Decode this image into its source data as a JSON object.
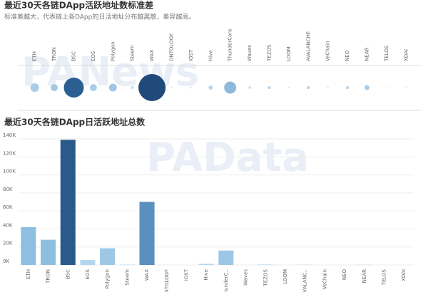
{
  "watermarks": [
    "PANews",
    "PAData"
  ],
  "chart_data": [
    {
      "type": "bubble",
      "title": "最近30天各链DApp活跃地址数标准差",
      "subtitle": "标准差越大，代表链上各DApp的日活地址分布越离散，差异越高。",
      "categories": [
        "ETH",
        "TRON",
        "BSC",
        "EOS",
        "Polygon",
        "Steem",
        "WAX",
        "ONTOLOGY",
        "IOST",
        "Hive",
        "ThunderCore",
        "Waves",
        "TEZOS",
        "LOOM",
        "AVALANCHE",
        "VeChain",
        "NEO",
        "NEAR",
        "TELOS",
        "XDAI"
      ],
      "values": [
        12,
        8,
        65,
        8,
        10,
        1.3,
        120,
        0.5,
        0.5,
        3,
        24,
        1,
        1.5,
        0.3,
        1.5,
        0.5,
        1.5,
        4,
        0.3,
        0.3
      ],
      "colors": [
        "#a9cde8",
        "#a2c6e3",
        "#2c5f91",
        "#a9cde8",
        "#a2c6e3",
        "#c3dbee",
        "#1f4a7a",
        "#d6e6f3",
        "#d6e6f3",
        "#b8d5ec",
        "#8fb9dc",
        "#c3dbee",
        "#b8d5ec",
        "#d6e6f3",
        "#b8d5ec",
        "#d6e6f3",
        "#b8d5ec",
        "#a9cde8",
        "#d6e6f3",
        "#d6e6f3"
      ]
    },
    {
      "type": "bar",
      "title": "最近30天各链DApp日活跃地址总数",
      "categories": [
        "ETH",
        "TRON",
        "BSC",
        "EOS",
        "Polygon",
        "Steem",
        "WAX",
        "ONTOLOGY",
        "IOST",
        "Hive",
        "ThunderC..",
        "Waves",
        "TEZOS",
        "LOOM",
        "AVALANC..",
        "VeChain",
        "NEO",
        "NEAR",
        "TELOS",
        "XDAI"
      ],
      "values": [
        42000,
        28000,
        139000,
        5500,
        18500,
        500,
        70000,
        0,
        0,
        1200,
        16000,
        0,
        500,
        0,
        300,
        0,
        0,
        300,
        0,
        0
      ],
      "colors": [
        "#8fbfe0",
        "#8fbfe0",
        "#2a5a8c",
        "#b3d6ee",
        "#9cc8e6",
        "#c8e1f2",
        "#5b8fbd",
        "#c8e1f2",
        "#c8e1f2",
        "#b3d6ee",
        "#9cc8e6",
        "#c8e1f2",
        "#b3d6ee",
        "#c8e1f2",
        "#b3d6ee",
        "#c8e1f2",
        "#c8e1f2",
        "#b3d6ee",
        "#c8e1f2",
        "#c8e1f2"
      ],
      "ylim": [
        0,
        145000
      ],
      "yticks": [
        {
          "value": 0,
          "label": "0K"
        },
        {
          "value": 20000,
          "label": "20K"
        },
        {
          "value": 40000,
          "label": "40K"
        },
        {
          "value": 60000,
          "label": "60K"
        },
        {
          "value": 80000,
          "label": "80K"
        },
        {
          "value": 100000,
          "label": "100K"
        },
        {
          "value": 120000,
          "label": "120K"
        },
        {
          "value": 140000,
          "label": "140K"
        }
      ],
      "grid": true
    }
  ]
}
